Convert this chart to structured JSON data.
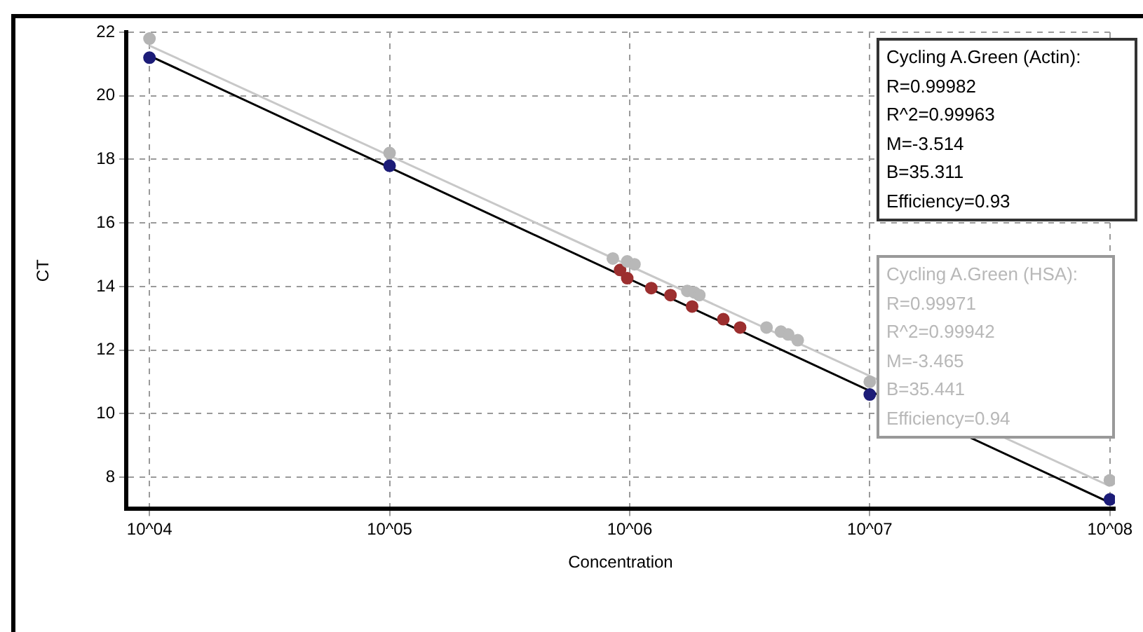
{
  "chart_data": {
    "type": "scatter",
    "xlabel": "Concentration",
    "ylabel": "CT",
    "log": "x",
    "xlim": [
      8000,
      105000000
    ],
    "xticks": [
      {
        "value": 10000,
        "label": "10^04"
      },
      {
        "value": 100000,
        "label": "10^05"
      },
      {
        "value": 1000000,
        "label": "10^06"
      },
      {
        "value": 10000000,
        "label": "10^07"
      },
      {
        "value": 100000000,
        "label": "10^08"
      }
    ],
    "ylim": [
      7,
      22
    ],
    "yticks": [
      8,
      10,
      12,
      14,
      16,
      18,
      20,
      22
    ],
    "grid": true,
    "marker": "circle",
    "legend": false,
    "series": [
      {
        "type": "line",
        "marker": "none",
        "color": "#c8c8c8",
        "x": [
          10000,
          100000000
        ],
        "values": [
          21.58,
          7.72
        ]
      },
      {
        "type": "line",
        "marker": "none",
        "color": "#000000",
        "x": [
          10000,
          100000000
        ],
        "values": [
          21.26,
          7.2
        ]
      },
      {
        "color": "#b4b4b4",
        "x": [
          10000,
          100000,
          10000000,
          100000000
        ],
        "values": [
          21.8,
          18.2,
          11.0,
          7.9
        ]
      },
      {
        "color": "#1c1c78",
        "x": [
          10000,
          100000,
          10000000,
          100000000
        ],
        "values": [
          21.2,
          17.8,
          10.6,
          7.3
        ]
      },
      {
        "color": "#b8b8b8",
        "x": [
          851000,
          977000,
          1047000,
          1738000,
          1862000,
          1950000,
          3715000,
          4266000,
          4571000,
          5012000
        ],
        "values": [
          14.88,
          14.79,
          14.7,
          13.86,
          13.81,
          13.73,
          12.71,
          12.58,
          12.49,
          12.31
        ]
      },
      {
        "color": "#9c2f2f",
        "x": [
          912000,
          977000,
          1230000,
          1479000,
          1820000,
          2455000,
          2884000
        ],
        "values": [
          14.52,
          14.26,
          13.95,
          13.73,
          13.37,
          12.97,
          12.71
        ]
      }
    ],
    "annotations": [
      "Cycling A.Green (Actin):\nR=0.99982\nR^2=0.99963\nM=-3.514\nB=35.311\nEfficiency=0.93",
      "Cycling A.Green (HSA):\nR=0.99971\nR^2=0.99942\nM=-3.465\nB=35.441\nEfficiency=0.94"
    ]
  }
}
